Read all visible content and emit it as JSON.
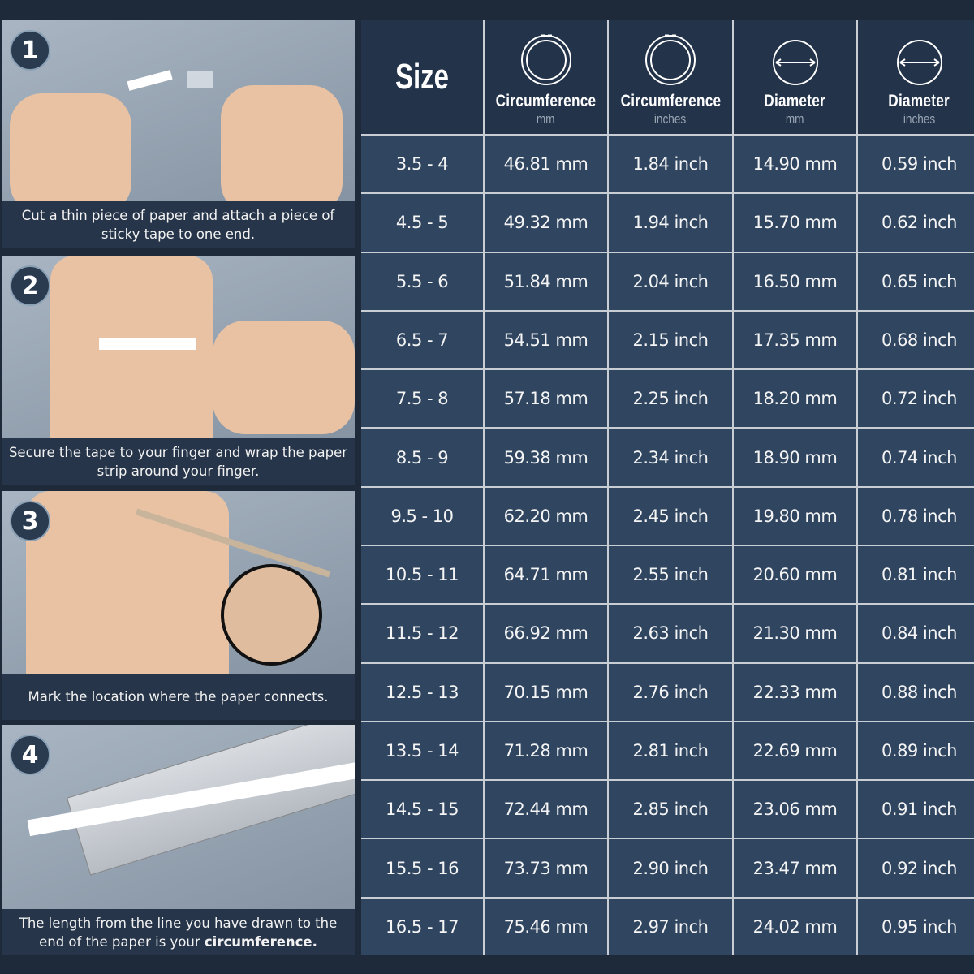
{
  "steps": [
    {
      "number": "1",
      "caption": "Cut a thin piece of paper and attach a piece of sticky tape to one end."
    },
    {
      "number": "2",
      "caption": "Secure the tape to your finger and wrap the paper strip around your finger."
    },
    {
      "number": "3",
      "caption": "Mark the location where the paper connects."
    },
    {
      "number": "4",
      "caption_pre": "The length from the line you have drawn to the end of the paper is your ",
      "caption_bold": "circumference."
    }
  ],
  "table": {
    "headers": [
      {
        "title": "Size"
      },
      {
        "title": "Circumference",
        "unit": "mm",
        "icon": "ring-circumference-icon"
      },
      {
        "title": "Circumference",
        "unit": "inches",
        "icon": "ring-circumference-icon"
      },
      {
        "title": "Diameter",
        "unit": "mm",
        "icon": "diameter-icon"
      },
      {
        "title": "Diameter",
        "unit": "inches",
        "icon": "diameter-icon"
      }
    ],
    "rows": [
      [
        "3.5 - 4",
        "46.81 mm",
        "1.84 inch",
        "14.90 mm",
        "0.59 inch"
      ],
      [
        "4.5 - 5",
        "49.32 mm",
        "1.94 inch",
        "15.70 mm",
        "0.62 inch"
      ],
      [
        "5.5 - 6",
        "51.84 mm",
        "2.04 inch",
        "16.50 mm",
        "0.65 inch"
      ],
      [
        "6.5 - 7",
        "54.51 mm",
        "2.15 inch",
        "17.35 mm",
        "0.68 inch"
      ],
      [
        "7.5 - 8",
        "57.18 mm",
        "2.25 inch",
        "18.20 mm",
        "0.72 inch"
      ],
      [
        "8.5 - 9",
        "59.38 mm",
        "2.34 inch",
        "18.90 mm",
        "0.74 inch"
      ],
      [
        "9.5 - 10",
        "62.20 mm",
        "2.45 inch",
        "19.80 mm",
        "0.78 inch"
      ],
      [
        "10.5 - 11",
        "64.71 mm",
        "2.55 inch",
        "20.60 mm",
        "0.81 inch"
      ],
      [
        "11.5 - 12",
        "66.92 mm",
        "2.63 inch",
        "21.30 mm",
        "0.84 inch"
      ],
      [
        "12.5 - 13",
        "70.15 mm",
        "2.76 inch",
        "22.33 mm",
        "0.88 inch"
      ],
      [
        "13.5 - 14",
        "71.28 mm",
        "2.81 inch",
        "22.69 mm",
        "0.89 inch"
      ],
      [
        "14.5 - 15",
        "72.44 mm",
        "2.85 inch",
        "23.06 mm",
        "0.91 inch"
      ],
      [
        "15.5 - 16",
        "73.73 mm",
        "2.90 inch",
        "23.47 mm",
        "0.92 inch"
      ],
      [
        "16.5 - 17",
        "75.46 mm",
        "2.97 inch",
        "24.02 mm",
        "0.95 inch"
      ]
    ]
  }
}
